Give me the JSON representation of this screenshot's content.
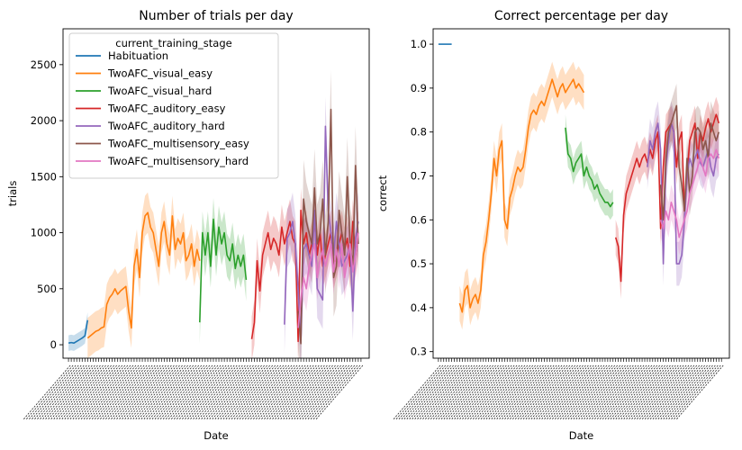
{
  "chart_data": [
    {
      "type": "line",
      "title": "Number of trials per day",
      "xlabel": "Date",
      "ylabel": "trials",
      "ylim": [
        -120,
        2820
      ],
      "yticks": [
        0,
        500,
        1000,
        1500,
        2000,
        2500
      ],
      "xlim": [
        -2,
        110
      ],
      "legend": {
        "title": "current_training_stage",
        "placement": "upper-left"
      },
      "series": [
        {
          "name": "Habituation",
          "color": "#1f77b4",
          "x": [
            0,
            1,
            2,
            3,
            4,
            5,
            6,
            7
          ],
          "y": [
            15,
            20,
            15,
            30,
            45,
            60,
            80,
            220
          ],
          "band": 70
        },
        {
          "name": "TwoAFC_visual_easy",
          "color": "#ff7f0e",
          "x": [
            7,
            8,
            9,
            10,
            11,
            12,
            13,
            14,
            15,
            16,
            17,
            18,
            19,
            20,
            21,
            22,
            23,
            24,
            25,
            26,
            27,
            28,
            29,
            30,
            31,
            32,
            33,
            34,
            35,
            36,
            37,
            38,
            39,
            40,
            41,
            42,
            43,
            44,
            45,
            46,
            47,
            48
          ],
          "y": [
            60,
            80,
            100,
            120,
            130,
            150,
            160,
            360,
            420,
            450,
            500,
            450,
            480,
            500,
            520,
            300,
            150,
            700,
            850,
            600,
            1000,
            1150,
            1180,
            1050,
            1000,
            850,
            700,
            1000,
            1100,
            900,
            800,
            1150,
            850,
            950,
            900,
            1000,
            750,
            800,
            900,
            700,
            850,
            750
          ],
          "band": 180
        },
        {
          "name": "TwoAFC_visual_hard",
          "color": "#2ca02c",
          "x": [
            48,
            49,
            50,
            51,
            52,
            53,
            54,
            55,
            56,
            57,
            58,
            59,
            60,
            61,
            62,
            63,
            64,
            65
          ],
          "y": [
            200,
            1000,
            800,
            1000,
            700,
            1120,
            800,
            1050,
            900,
            1000,
            800,
            750,
            900,
            680,
            800,
            700,
            800,
            580
          ],
          "band": 190
        },
        {
          "name": "TwoAFC_auditory_easy",
          "color": "#d62728",
          "x": [
            67,
            68,
            69,
            70,
            71,
            72,
            73,
            74,
            75,
            76,
            77,
            78,
            79,
            80,
            81,
            82,
            83,
            84,
            85,
            86,
            87,
            88,
            89,
            90,
            91,
            92,
            93,
            94,
            95,
            96,
            97,
            98,
            99,
            100,
            101,
            102,
            103,
            104,
            105,
            106
          ],
          "y": [
            50,
            200,
            750,
            480,
            800,
            900,
            1000,
            850,
            950,
            900,
            800,
            1050,
            900,
            1000,
            1100,
            950,
            900,
            30,
            1200,
            900,
            1000,
            800,
            900,
            1100,
            800,
            1000,
            700,
            800,
            900,
            1000,
            700,
            800,
            900,
            1000,
            850,
            950,
            700,
            1100,
            800,
            1000
          ],
          "band": 200
        },
        {
          "name": "TwoAFC_auditory_hard",
          "color": "#9467bd",
          "x": [
            79,
            80,
            81,
            82,
            83,
            84,
            85,
            86,
            87,
            88,
            89,
            90,
            91,
            92,
            93,
            94,
            95,
            96,
            97,
            98,
            99,
            100,
            101,
            102,
            103,
            104,
            105,
            106
          ],
          "y": [
            180,
            950,
            1000,
            1100,
            900,
            500,
            20,
            850,
            900,
            800,
            700,
            1200,
            500,
            450,
            400,
            1950,
            1200,
            1000,
            800,
            1100,
            900,
            700,
            750,
            800,
            900,
            300,
            950,
            1100
          ],
          "band": 260
        },
        {
          "name": "TwoAFC_multisensory_easy",
          "color": "#8c564b",
          "x": [
            84,
            85,
            86,
            87,
            88,
            89,
            90,
            91,
            92,
            93,
            94,
            95,
            96,
            97,
            98,
            99,
            100,
            101,
            102,
            103,
            104,
            105,
            106
          ],
          "y": [
            300,
            10,
            1300,
            1100,
            1000,
            900,
            1400,
            900,
            1000,
            1300,
            800,
            1100,
            2100,
            600,
            700,
            1200,
            1000,
            800,
            1500,
            900,
            700,
            1600,
            900
          ],
          "band": 350
        },
        {
          "name": "TwoAFC_multisensory_hard",
          "color": "#e377c2",
          "x": [
            84,
            85,
            86,
            87,
            88,
            89,
            90,
            91,
            92,
            93,
            94,
            95,
            96,
            97,
            98,
            99,
            100,
            101,
            102,
            103,
            104,
            105,
            106
          ],
          "y": [
            150,
            400,
            600,
            500,
            700,
            800,
            900,
            600,
            750,
            850,
            700,
            800,
            900,
            650,
            850,
            700,
            900,
            600,
            750,
            900,
            650,
            800,
            1000
          ],
          "band": 200
        }
      ]
    },
    {
      "type": "line",
      "title": "Correct percentage per day",
      "xlabel": "Date",
      "ylabel": "correct",
      "ylim": [
        0.285,
        1.035
      ],
      "yticks": [
        0.3,
        0.4,
        0.5,
        0.6,
        0.7,
        0.8,
        0.9,
        1.0
      ],
      "yticklabels": [
        "0.3",
        "0.4",
        "0.5",
        "0.6",
        "0.7",
        "0.8",
        "0.9",
        "1.0"
      ],
      "xlim": [
        -2,
        110
      ],
      "series": [
        {
          "name": "Habituation",
          "color": "#1f77b4",
          "x": [
            0,
            1,
            2,
            3,
            4,
            5
          ],
          "y": [
            1.0,
            1.0,
            1.0,
            1.0,
            1.0,
            1.0
          ],
          "band": 0
        },
        {
          "name": "TwoAFC_visual_easy",
          "color": "#ff7f0e",
          "x": [
            8,
            9,
            10,
            11,
            12,
            13,
            14,
            15,
            16,
            17,
            18,
            19,
            20,
            21,
            22,
            23,
            24,
            25,
            26,
            27,
            28,
            29,
            30,
            31,
            32,
            33,
            34,
            35,
            36,
            37,
            38,
            39,
            40,
            41,
            42,
            43,
            44,
            45,
            46,
            47,
            48,
            49,
            50,
            51,
            52,
            53,
            54,
            55
          ],
          "y": [
            0.41,
            0.39,
            0.44,
            0.45,
            0.4,
            0.42,
            0.43,
            0.41,
            0.44,
            0.52,
            0.55,
            0.6,
            0.66,
            0.74,
            0.7,
            0.76,
            0.78,
            0.6,
            0.58,
            0.65,
            0.67,
            0.7,
            0.72,
            0.71,
            0.72,
            0.76,
            0.81,
            0.84,
            0.85,
            0.84,
            0.86,
            0.87,
            0.86,
            0.88,
            0.9,
            0.92,
            0.9,
            0.88,
            0.9,
            0.91,
            0.89,
            0.9,
            0.91,
            0.92,
            0.9,
            0.91,
            0.9,
            0.89
          ],
          "band": 0.04
        },
        {
          "name": "TwoAFC_visual_hard",
          "color": "#2ca02c",
          "x": [
            48,
            49,
            50,
            51,
            52,
            53,
            54,
            55,
            56,
            57,
            58,
            59,
            60,
            61,
            62,
            63,
            64,
            65,
            66
          ],
          "y": [
            0.81,
            0.75,
            0.74,
            0.71,
            0.73,
            0.74,
            0.75,
            0.7,
            0.72,
            0.7,
            0.69,
            0.67,
            0.68,
            0.66,
            0.65,
            0.64,
            0.64,
            0.63,
            0.64
          ],
          "band": 0.03
        },
        {
          "name": "TwoAFC_auditory_easy",
          "color": "#d62728",
          "x": [
            67,
            68,
            69,
            70,
            71,
            72,
            73,
            74,
            75,
            76,
            77,
            78,
            79,
            80,
            81,
            82,
            83,
            84,
            85,
            86,
            87,
            88,
            89,
            90,
            91,
            92,
            93,
            94,
            95,
            96,
            97,
            98,
            99,
            100,
            101,
            102,
            103,
            104,
            105,
            106
          ],
          "y": [
            0.56,
            0.54,
            0.46,
            0.61,
            0.66,
            0.68,
            0.7,
            0.72,
            0.74,
            0.72,
            0.74,
            0.75,
            0.73,
            0.76,
            0.74,
            0.78,
            0.8,
            0.58,
            0.72,
            0.8,
            0.81,
            0.82,
            0.8,
            0.72,
            0.78,
            0.8,
            0.62,
            0.7,
            0.78,
            0.8,
            0.82,
            0.74,
            0.8,
            0.78,
            0.81,
            0.83,
            0.8,
            0.82,
            0.84,
            0.82
          ],
          "band": 0.04
        },
        {
          "name": "TwoAFC_auditory_hard",
          "color": "#9467bd",
          "x": [
            79,
            80,
            81,
            82,
            83,
            84,
            85,
            86,
            87,
            88,
            89,
            90,
            91,
            92,
            93,
            94,
            95,
            96,
            97,
            98,
            99,
            100,
            101,
            102,
            103,
            104,
            105,
            106
          ],
          "y": [
            0.72,
            0.78,
            0.76,
            0.8,
            0.82,
            0.76,
            0.5,
            0.72,
            0.78,
            0.82,
            0.8,
            0.5,
            0.5,
            0.52,
            0.6,
            0.7,
            0.74,
            0.72,
            0.74,
            0.76,
            0.73,
            0.72,
            0.74,
            0.76,
            0.72,
            0.7,
            0.74,
            0.75
          ],
          "band": 0.05
        },
        {
          "name": "TwoAFC_multisensory_easy",
          "color": "#8c564b",
          "x": [
            84,
            85,
            86,
            87,
            88,
            89,
            90,
            91,
            92,
            93,
            94,
            95,
            96,
            97,
            98,
            99,
            100,
            101,
            102,
            103,
            104,
            105,
            106
          ],
          "y": [
            0.68,
            0.6,
            0.74,
            0.8,
            0.82,
            0.84,
            0.86,
            0.72,
            0.68,
            0.62,
            0.74,
            0.66,
            0.7,
            0.8,
            0.81,
            0.8,
            0.76,
            0.78,
            0.74,
            0.82,
            0.8,
            0.78,
            0.8
          ],
          "band": 0.05
        },
        {
          "name": "TwoAFC_multisensory_hard",
          "color": "#e377c2",
          "x": [
            84,
            85,
            86,
            87,
            88,
            89,
            90,
            91,
            92,
            93,
            94,
            95,
            96,
            97,
            98,
            99,
            100,
            101,
            102,
            103,
            104,
            105,
            106
          ],
          "y": [
            0.6,
            0.58,
            0.62,
            0.6,
            0.64,
            0.62,
            0.6,
            0.56,
            0.58,
            0.6,
            0.62,
            0.66,
            0.68,
            0.7,
            0.72,
            0.74,
            0.72,
            0.7,
            0.74,
            0.75,
            0.74,
            0.76,
            0.74
          ],
          "band": 0.04
        }
      ]
    }
  ]
}
